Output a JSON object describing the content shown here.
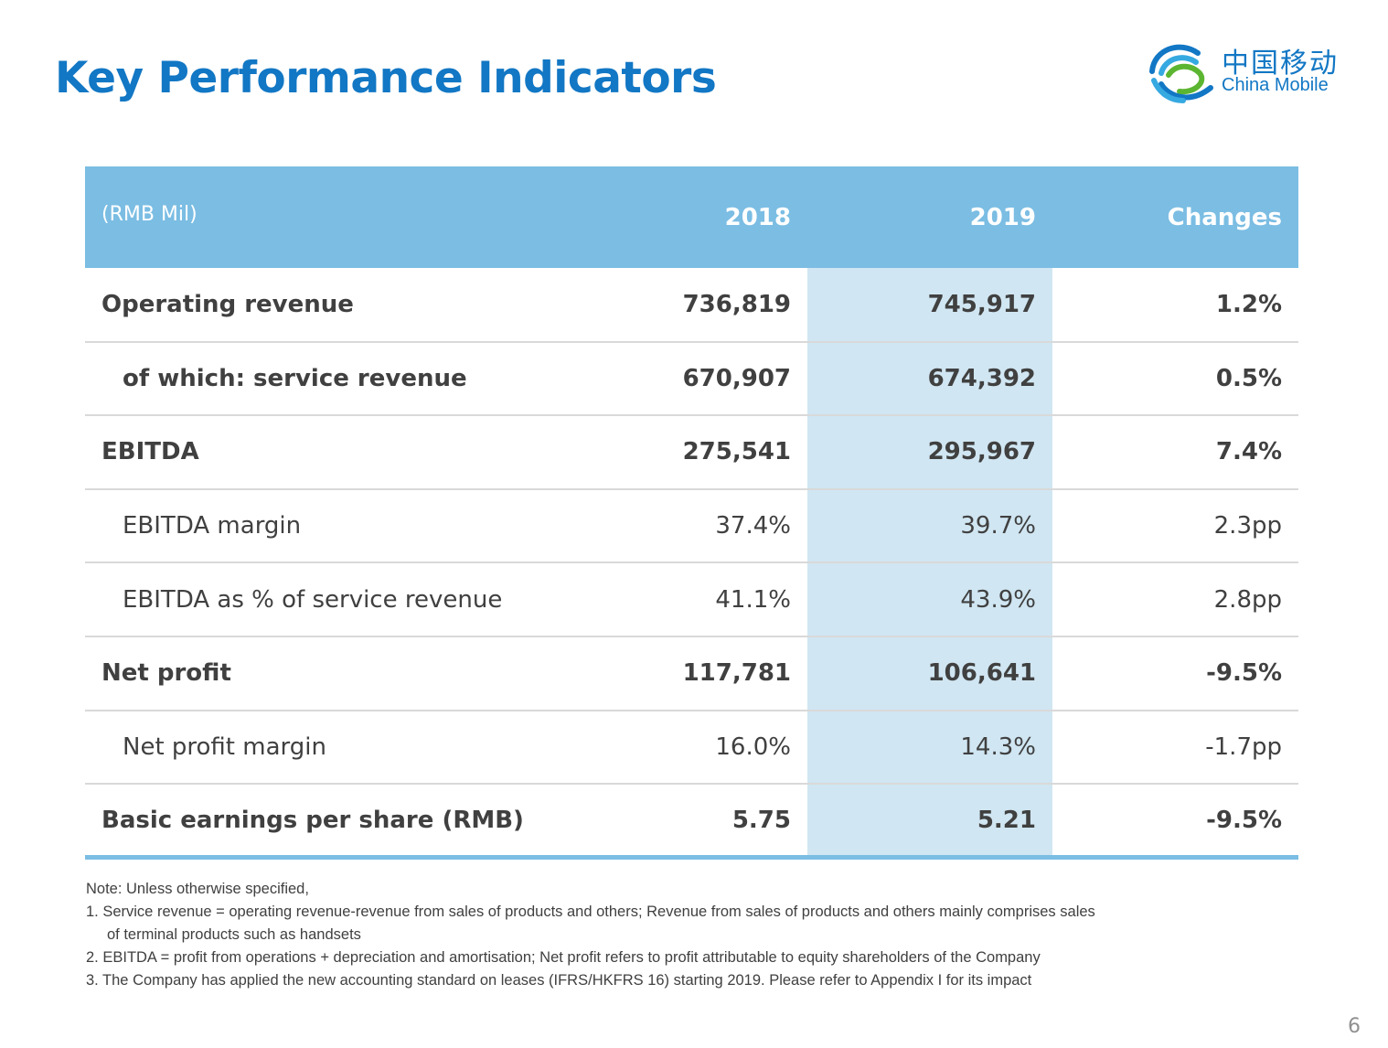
{
  "header": {
    "title": "Key Performance Indicators",
    "logo_cn": "中国移动",
    "logo_en": "China Mobile"
  },
  "table": {
    "columns": [
      "(RMB Mil)",
      "2018",
      "2019",
      "Changes"
    ],
    "rows": [
      [
        "Operating revenue",
        "736,819",
        "745,917",
        "1.2%"
      ],
      [
        "of which: service revenue",
        "670,907",
        "674,392",
        "0.5%"
      ],
      [
        "EBITDA",
        "275,541",
        "295,967",
        "7.4%"
      ],
      [
        "EBITDA margin",
        "37.4%",
        "39.7%",
        "2.3pp"
      ],
      [
        "EBITDA as % of service revenue",
        "41.1%",
        "43.9%",
        "2.8pp"
      ],
      [
        "Net profit",
        "117,781",
        "106,641",
        "-9.5%"
      ],
      [
        "Net profit margin",
        "16.0%",
        "14.3%",
        "-1.7pp"
      ],
      [
        "Basic earnings per share (RMB)",
        "5.75",
        "5.21",
        "-9.5%"
      ]
    ]
  },
  "notes": [
    "Note: Unless otherwise specified,",
    "1. Service revenue = operating revenue-revenue from sales of products and others; Revenue from sales of products and others mainly comprises sales",
    "of terminal products such as handsets",
    "2. EBITDA = profit from operations + depreciation and amortisation; Net profit refers to profit attributable to equity shareholders of the Company",
    "3. The Company has applied the new accounting standard on leases (IFRS/HKFRS 16) starting 2019. Please refer to Appendix I for its impact"
  ],
  "page_number": "6"
}
